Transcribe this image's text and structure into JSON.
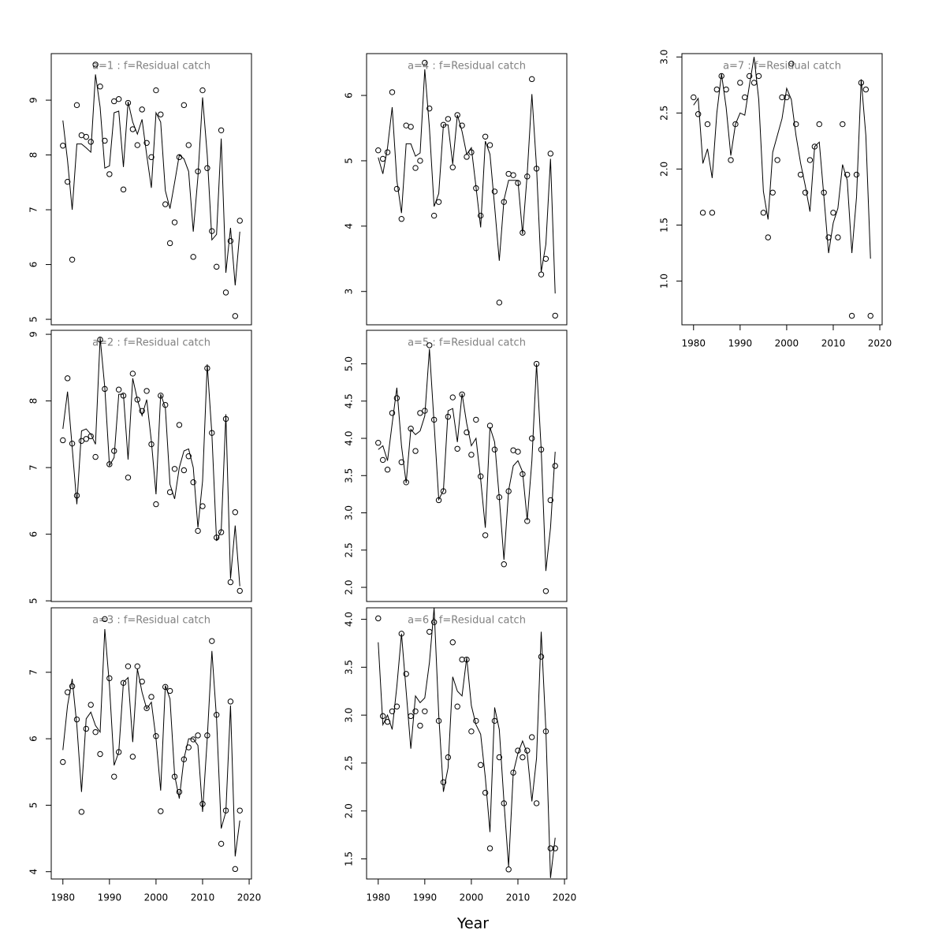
{
  "x_label": "Year",
  "chart_data": [
    {
      "type": "line",
      "title": "a=1  :  f=Residual catch",
      "show_xaxis": false,
      "color": "#000000",
      "x": [
        1980,
        1981,
        1982,
        1983,
        1984,
        1985,
        1986,
        1987,
        1988,
        1989,
        1990,
        1991,
        1992,
        1993,
        1994,
        1995,
        1996,
        1997,
        1998,
        1999,
        2000,
        2001,
        2002,
        2003,
        2004,
        2005,
        2006,
        2007,
        2008,
        2009,
        2010,
        2011,
        2012,
        2013,
        2014,
        2015,
        2016,
        2017,
        2018
      ],
      "xlim": [
        1977.5,
        2020.5
      ],
      "xticks": [
        1980,
        1990,
        2000,
        2010,
        2020
      ],
      "ylim": [
        4.9,
        9.85
      ],
      "yticks": [
        5,
        6,
        7,
        8,
        9
      ],
      "series": [
        {
          "style": "points",
          "values": [
            8.17,
            7.51,
            6.09,
            8.91,
            8.36,
            8.33,
            8.24,
            9.65,
            9.25,
            8.26,
            7.65,
            8.98,
            9.02,
            7.37,
            8.95,
            8.47,
            8.18,
            8.83,
            8.22,
            7.96,
            9.18,
            8.74,
            7.1,
            6.39,
            6.77,
            7.96,
            8.91,
            8.18,
            6.14,
            7.7,
            9.18,
            7.76,
            6.61,
            5.96,
            8.45,
            5.49,
            6.43,
            5.06,
            6.8
          ]
        },
        {
          "style": "line",
          "values": [
            8.63,
            7.9,
            7.0,
            8.2,
            8.2,
            8.13,
            8.05,
            9.47,
            8.87,
            7.76,
            7.8,
            8.77,
            8.8,
            7.78,
            8.97,
            8.6,
            8.38,
            8.65,
            8.0,
            7.4,
            8.77,
            8.6,
            7.35,
            7.02,
            7.5,
            8.0,
            7.93,
            7.7,
            6.6,
            7.6,
            9.05,
            8.0,
            6.45,
            6.55,
            8.3,
            5.85,
            6.67,
            5.62,
            6.6
          ]
        }
      ]
    },
    {
      "type": "line",
      "title": "a=2  :  f=Residual catch",
      "show_xaxis": false,
      "color": "#000000",
      "x": [
        1980,
        1981,
        1982,
        1983,
        1984,
        1985,
        1986,
        1987,
        1988,
        1989,
        1990,
        1991,
        1992,
        1993,
        1994,
        1995,
        1996,
        1997,
        1998,
        1999,
        2000,
        2001,
        2002,
        2003,
        2004,
        2005,
        2006,
        2007,
        2008,
        2009,
        2010,
        2011,
        2012,
        2013,
        2014,
        2015,
        2016,
        2017,
        2018
      ],
      "xlim": [
        1977.5,
        2020.5
      ],
      "xticks": [
        1980,
        1990,
        2000,
        2010,
        2020
      ],
      "ylim": [
        4.99,
        9.06
      ],
      "yticks": [
        5,
        6,
        7,
        8,
        9
      ],
      "series": [
        {
          "style": "points",
          "values": [
            7.41,
            8.34,
            7.36,
            6.58,
            7.4,
            7.43,
            7.47,
            7.16,
            8.92,
            8.18,
            7.05,
            7.25,
            8.17,
            8.08,
            6.85,
            8.41,
            8.02,
            7.85,
            8.15,
            7.35,
            6.45,
            8.08,
            7.94,
            6.63,
            6.98,
            7.64,
            6.96,
            7.17,
            6.78,
            6.05,
            6.42,
            8.49,
            7.52,
            5.95,
            6.03,
            7.73,
            5.28,
            6.33,
            5.15
          ]
        },
        {
          "style": "line",
          "values": [
            7.58,
            8.14,
            7.3,
            6.45,
            7.55,
            7.58,
            7.5,
            7.35,
            8.95,
            8.2,
            7.03,
            7.15,
            8.1,
            8.1,
            7.12,
            8.34,
            8.02,
            7.78,
            8.02,
            7.4,
            6.6,
            8.1,
            7.9,
            6.75,
            6.53,
            7.0,
            7.25,
            7.28,
            7.0,
            6.1,
            6.8,
            8.55,
            7.5,
            5.9,
            6.05,
            7.8,
            5.33,
            6.13,
            5.22
          ]
        }
      ]
    },
    {
      "type": "line",
      "title": "a=3  :  f=Residual catch",
      "show_xaxis": true,
      "color": "#000000",
      "x": [
        1980,
        1981,
        1982,
        1983,
        1984,
        1985,
        1986,
        1987,
        1988,
        1989,
        1990,
        1991,
        1992,
        1993,
        1994,
        1995,
        1996,
        1997,
        1998,
        1999,
        2000,
        2001,
        2002,
        2003,
        2004,
        2005,
        2006,
        2007,
        2008,
        2009,
        2010,
        2011,
        2012,
        2013,
        2014,
        2015,
        2016,
        2017,
        2018
      ],
      "xlim": [
        1977.5,
        2020.5
      ],
      "xticks": [
        1980,
        1990,
        2000,
        2010,
        2020
      ],
      "ylim": [
        3.89,
        7.97
      ],
      "yticks": [
        4,
        5,
        6,
        7
      ],
      "series": [
        {
          "style": "points",
          "values": [
            5.65,
            6.7,
            6.79,
            6.29,
            4.9,
            6.15,
            6.51,
            6.1,
            5.77,
            7.8,
            6.91,
            5.43,
            5.8,
            6.84,
            7.09,
            5.73,
            7.09,
            6.86,
            6.46,
            6.63,
            6.04,
            4.91,
            6.78,
            6.72,
            5.43,
            5.2,
            5.69,
            5.87,
            5.99,
            6.05,
            5.02,
            6.05,
            7.47,
            6.36,
            4.42,
            4.92,
            6.56,
            4.04,
            4.92
          ]
        },
        {
          "style": "line",
          "values": [
            5.83,
            6.5,
            6.9,
            6.2,
            5.2,
            6.3,
            6.4,
            6.2,
            6.1,
            7.65,
            6.8,
            5.6,
            5.8,
            6.85,
            6.92,
            5.95,
            7.05,
            6.7,
            6.45,
            6.55,
            6.0,
            5.22,
            6.8,
            6.6,
            5.45,
            5.1,
            5.7,
            6.0,
            6.0,
            5.9,
            4.9,
            6.0,
            7.32,
            6.3,
            4.65,
            4.9,
            6.5,
            4.23,
            4.77
          ]
        }
      ]
    },
    {
      "type": "line",
      "title": "a=4  :  f=Residual catch",
      "show_xaxis": false,
      "color": "#000000",
      "x": [
        1980,
        1981,
        1982,
        1983,
        1984,
        1985,
        1986,
        1987,
        1988,
        1989,
        1990,
        1991,
        1992,
        1993,
        1994,
        1995,
        1996,
        1997,
        1998,
        1999,
        2000,
        2001,
        2002,
        2003,
        2004,
        2005,
        2006,
        2007,
        2008,
        2009,
        2010,
        2011,
        2012,
        2013,
        2014,
        2015,
        2016,
        2017,
        2018
      ],
      "xlim": [
        1977.5,
        2020.5
      ],
      "xticks": [
        1980,
        1990,
        2000,
        2010,
        2020
      ],
      "ylim": [
        2.49,
        6.64
      ],
      "yticks": [
        3,
        4,
        5,
        6
      ],
      "series": [
        {
          "style": "points",
          "values": [
            5.16,
            5.03,
            5.13,
            6.05,
            4.57,
            4.11,
            5.54,
            5.52,
            4.89,
            5.0,
            6.5,
            5.8,
            4.16,
            4.37,
            5.55,
            5.64,
            4.9,
            5.7,
            5.54,
            5.06,
            5.13,
            4.58,
            4.16,
            5.37,
            5.24,
            4.53,
            2.83,
            4.37,
            4.8,
            4.78,
            4.66,
            3.9,
            4.76,
            6.25,
            4.88,
            3.26,
            3.5,
            5.11,
            2.63
          ]
        },
        {
          "style": "line",
          "values": [
            5.05,
            4.8,
            5.2,
            5.82,
            4.7,
            4.2,
            5.26,
            5.26,
            5.07,
            5.12,
            6.4,
            5.5,
            4.3,
            4.5,
            5.55,
            5.55,
            4.95,
            5.7,
            5.45,
            5.1,
            5.2,
            4.6,
            3.98,
            5.3,
            5.1,
            4.3,
            3.47,
            4.4,
            4.7,
            4.7,
            4.7,
            3.88,
            4.8,
            6.02,
            4.9,
            3.3,
            3.72,
            5.03,
            2.97
          ]
        }
      ]
    },
    {
      "type": "line",
      "title": "a=5  :  f=Residual catch",
      "show_xaxis": false,
      "color": "#000000",
      "x": [
        1980,
        1981,
        1982,
        1983,
        1984,
        1985,
        1986,
        1987,
        1988,
        1989,
        1990,
        1991,
        1992,
        1993,
        1994,
        1995,
        1996,
        1997,
        1998,
        1999,
        2000,
        2001,
        2002,
        2003,
        2004,
        2005,
        2006,
        2007,
        2008,
        2009,
        2010,
        2011,
        2012,
        2013,
        2014,
        2015,
        2016,
        2017,
        2018
      ],
      "xlim": [
        1977.5,
        2020.5
      ],
      "xticks": [
        1980,
        1990,
        2000,
        2010,
        2020
      ],
      "ylim": [
        1.81,
        5.45
      ],
      "yticks": [
        {
          "value": 2,
          "label": "2.0"
        },
        2.5,
        {
          "value": 3,
          "label": "3.0"
        },
        3.5,
        {
          "value": 4,
          "label": "4.0"
        },
        4.5,
        {
          "value": 5,
          "label": "5.0"
        }
      ],
      "series": [
        {
          "style": "points",
          "values": [
            3.94,
            3.71,
            3.58,
            4.34,
            4.54,
            3.68,
            3.41,
            4.13,
            3.83,
            4.34,
            4.37,
            5.25,
            4.25,
            3.17,
            3.29,
            4.29,
            4.55,
            3.86,
            4.59,
            4.08,
            3.78,
            4.25,
            3.49,
            2.7,
            4.17,
            3.85,
            3.21,
            2.31,
            3.29,
            3.84,
            3.82,
            3.52,
            2.89,
            4.0,
            5.0,
            3.85,
            1.95,
            3.17,
            3.63
          ]
        },
        {
          "style": "line",
          "values": [
            3.85,
            3.9,
            3.7,
            4.2,
            4.68,
            3.9,
            3.4,
            4.12,
            4.05,
            4.1,
            4.3,
            5.2,
            4.2,
            3.18,
            3.3,
            4.37,
            4.4,
            3.95,
            4.6,
            4.2,
            3.9,
            4.0,
            3.45,
            2.8,
            4.15,
            3.95,
            3.2,
            2.37,
            3.3,
            3.63,
            3.7,
            3.55,
            2.9,
            3.7,
            5.0,
            3.85,
            2.22,
            2.8,
            3.82
          ]
        }
      ]
    },
    {
      "type": "line",
      "title": "a=6  :  f=Residual catch",
      "show_xaxis": true,
      "color": "#000000",
      "x": [
        1980,
        1981,
        1982,
        1983,
        1984,
        1985,
        1986,
        1987,
        1988,
        1989,
        1990,
        1991,
        1992,
        1993,
        1994,
        1995,
        1996,
        1997,
        1998,
        1999,
        2000,
        2001,
        2002,
        2003,
        2004,
        2005,
        2006,
        2007,
        2008,
        2009,
        2010,
        2011,
        2012,
        2013,
        2014,
        2015,
        2016,
        2017,
        2018
      ],
      "xlim": [
        1977.5,
        2020.5
      ],
      "xticks": [
        1980,
        1990,
        2000,
        2010,
        2020
      ],
      "ylim": [
        1.29,
        4.12
      ],
      "yticks": [
        1.5,
        {
          "value": 2,
          "label": "2.0"
        },
        2.5,
        {
          "value": 3,
          "label": "3.0"
        },
        3.5,
        {
          "value": 4,
          "label": "4.0"
        }
      ],
      "series": [
        {
          "style": "points",
          "values": [
            4.01,
            2.99,
            2.93,
            3.04,
            3.09,
            3.85,
            3.43,
            2.99,
            3.04,
            2.89,
            3.04,
            3.87,
            3.97,
            2.94,
            2.3,
            2.56,
            3.76,
            3.09,
            3.58,
            3.58,
            2.83,
            2.94,
            2.48,
            2.19,
            1.61,
            2.94,
            2.56,
            2.08,
            1.39,
            2.4,
            2.63,
            2.56,
            2.63,
            2.77,
            2.08,
            3.61,
            2.83,
            1.61,
            1.61
          ]
        },
        {
          "style": "line",
          "values": [
            3.76,
            2.9,
            3.0,
            2.85,
            3.3,
            3.85,
            3.25,
            2.65,
            3.2,
            3.13,
            3.18,
            3.55,
            4.12,
            3.0,
            2.2,
            2.45,
            3.4,
            3.25,
            3.2,
            3.6,
            3.1,
            2.9,
            2.8,
            2.35,
            1.78,
            3.08,
            2.85,
            2.1,
            1.42,
            2.4,
            2.6,
            2.73,
            2.6,
            2.1,
            2.55,
            3.87,
            2.85,
            1.3,
            1.72
          ]
        }
      ]
    },
    {
      "type": "line",
      "title": "a=7  :  f=Residual catch",
      "show_xaxis": true,
      "color": "#000000",
      "x": [
        1980,
        1981,
        1982,
        1983,
        1984,
        1985,
        1986,
        1987,
        1988,
        1989,
        1990,
        1991,
        1992,
        1993,
        1994,
        1995,
        1996,
        1997,
        1998,
        1999,
        2000,
        2001,
        2002,
        2003,
        2004,
        2005,
        2006,
        2007,
        2008,
        2009,
        2010,
        2011,
        2012,
        2013,
        2014,
        2015,
        2016,
        2017,
        2018
      ],
      "xlim": [
        1977.5,
        2020.5
      ],
      "xticks": [
        1980,
        1990,
        2000,
        2010,
        2020
      ],
      "ylim": [
        0.61,
        3.03
      ],
      "yticks": [
        {
          "value": 1,
          "label": "1.0"
        },
        1.5,
        {
          "value": 2,
          "label": "2.0"
        },
        2.5,
        {
          "value": 3,
          "label": "3.0"
        }
      ],
      "series": [
        {
          "style": "points",
          "values": [
            2.64,
            2.49,
            1.61,
            2.4,
            1.61,
            2.71,
            2.83,
            2.71,
            2.08,
            2.4,
            2.77,
            2.64,
            2.83,
            2.77,
            2.83,
            1.61,
            1.39,
            1.79,
            2.08,
            2.64,
            2.64,
            2.94,
            2.4,
            1.95,
            1.79,
            2.08,
            2.2,
            2.4,
            1.79,
            1.39,
            1.61,
            1.39,
            2.4,
            1.95,
            0.69,
            1.95,
            2.77,
            2.71,
            0.69
          ]
        },
        {
          "style": "line",
          "values": [
            2.57,
            2.63,
            2.05,
            2.18,
            1.92,
            2.5,
            2.85,
            2.55,
            2.12,
            2.4,
            2.5,
            2.48,
            2.75,
            3.0,
            2.62,
            1.8,
            1.55,
            2.15,
            2.3,
            2.45,
            2.72,
            2.62,
            2.3,
            2.05,
            1.85,
            1.62,
            2.2,
            2.24,
            1.75,
            1.25,
            1.52,
            1.65,
            2.04,
            1.9,
            1.25,
            1.75,
            2.8,
            2.3,
            1.2
          ]
        }
      ]
    }
  ]
}
